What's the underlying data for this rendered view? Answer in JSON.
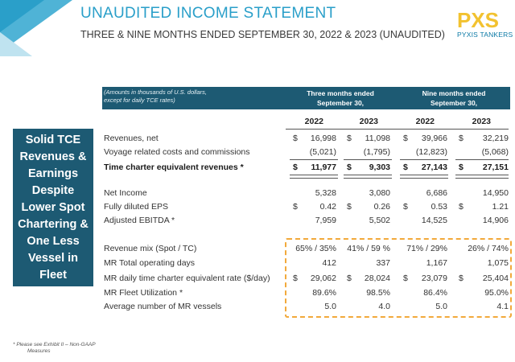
{
  "header": {
    "title": "UNAUDITED INCOME STATEMENT",
    "subtitle": "THREE & NINE MONTHS ENDED SEPTEMBER 30, 2022 & 2023 (UNAUDITED)",
    "logo_mark": "PXS",
    "logo_text": "PYXIS TANKERS",
    "accent_color": "#2a9fc9",
    "dark_color": "#1d5a73",
    "highlight_color": "#f2a93b"
  },
  "table_header": {
    "note_line1": "(Amounts in thousands of U.S. dollars,",
    "note_line2": "except for daily TCE rates)",
    "three_months_line1": "Three months ended",
    "three_months_line2": "September 30,",
    "nine_months_line1": "Nine months ended",
    "nine_months_line2": "September 30,",
    "years": [
      "2022",
      "2023",
      "2022",
      "2023"
    ]
  },
  "side_panel": {
    "text": "Solid TCE Revenues & Earnings Despite Lower Spot Chartering & One Less Vessel in Fleet"
  },
  "rows": [
    {
      "label": "Revenues, net",
      "bold": false,
      "currency": true,
      "values": [
        "16,998",
        "11,098",
        "39,966",
        "32,219"
      ]
    },
    {
      "label": "Voyage related costs and commissions",
      "bold": false,
      "currency": false,
      "values": [
        "(5,021)",
        "(1,795)",
        "(12,823)",
        "(5,068)"
      ]
    },
    {
      "label": "Time charter equivalent revenues *",
      "bold": true,
      "currency": true,
      "values": [
        "11,977",
        "9,303",
        "27,143",
        "27,151"
      ]
    },
    {
      "label": "Net Income",
      "bold": false,
      "currency": false,
      "values": [
        "5,328",
        "3,080",
        "6,686",
        "14,950"
      ]
    },
    {
      "label": "Fully diluted EPS",
      "bold": false,
      "currency": true,
      "values": [
        "0.42",
        "0.26",
        "0.53",
        "1.21"
      ]
    },
    {
      "label": "Adjusted EBITDA *",
      "bold": false,
      "currency": false,
      "values": [
        "7,959",
        "5,502",
        "14,525",
        "14,906"
      ]
    },
    {
      "label": "Revenue mix (Spot / TC)",
      "bold": false,
      "currency": false,
      "values": [
        "65% / 35%",
        "41% / 59 %",
        "71% / 29%",
        "26% / 74%"
      ]
    },
    {
      "label": "MR Total operating days",
      "bold": false,
      "currency": false,
      "values": [
        "412",
        "337",
        "1,167",
        "1,075"
      ]
    },
    {
      "label": "MR daily time charter equivalent rate ($/day)",
      "bold": false,
      "currency": true,
      "values": [
        "29,062",
        "28,024",
        "23,079",
        "25,404"
      ]
    },
    {
      "label": "MR Fleet Utilization *",
      "bold": false,
      "currency": false,
      "values": [
        "89.6%",
        "98.5%",
        "86.4%",
        "95.0%"
      ]
    },
    {
      "label": "Average number of MR vessels",
      "bold": false,
      "currency": false,
      "values": [
        "5.0",
        "4.0",
        "5.0",
        "4.1"
      ]
    }
  ],
  "currency_symbol": "$",
  "footnote": {
    "line1": "* Please see Exhibit II – Non-GAAP",
    "line2": "Measures"
  }
}
